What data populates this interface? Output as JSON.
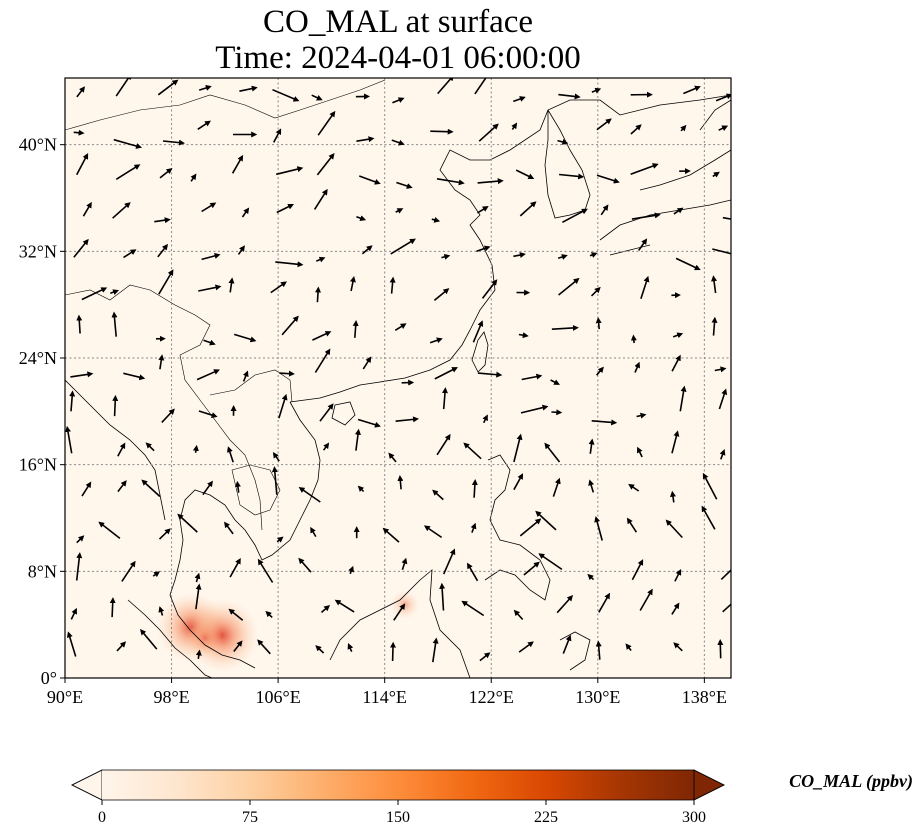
{
  "title": {
    "line1": "CO_MAL at surface",
    "line2": "Time: 2024-04-01 06:00:00"
  },
  "map": {
    "lon_range": [
      90,
      140
    ],
    "lat_range": [
      0,
      45
    ],
    "gridlines": true,
    "x_ticks": [
      {
        "value": 90,
        "label": "90°E"
      },
      {
        "value": 98,
        "label": "98°E"
      },
      {
        "value": 106,
        "label": "106°E"
      },
      {
        "value": 114,
        "label": "114°E"
      },
      {
        "value": 122,
        "label": "122°E"
      },
      {
        "value": 130,
        "label": "130°E"
      },
      {
        "value": 138,
        "label": "138°E"
      }
    ],
    "y_ticks": [
      {
        "value": 0,
        "label": "0°"
      },
      {
        "value": 8,
        "label": "8°N"
      },
      {
        "value": 16,
        "label": "16°N"
      },
      {
        "value": 24,
        "label": "24°N"
      },
      {
        "value": 32,
        "label": "32°N"
      },
      {
        "value": 40,
        "label": "40°N"
      }
    ],
    "background_color": "#fff6ec",
    "hotspots": [
      {
        "lon": 99.5,
        "lat": 3.8,
        "value": 160
      },
      {
        "lon": 101.8,
        "lat": 3.2,
        "value": 170
      },
      {
        "lon": 100.5,
        "lat": 3.0,
        "value": 60
      },
      {
        "lon": 115.5,
        "lat": 5.5,
        "value": 40
      }
    ]
  },
  "colorbar": {
    "min": 0,
    "max": 300,
    "extend": "both",
    "ticks": [
      {
        "value": 0,
        "label": "0"
      },
      {
        "value": 75,
        "label": "75"
      },
      {
        "value": 150,
        "label": "150"
      },
      {
        "value": 225,
        "label": "225"
      },
      {
        "value": 300,
        "label": "300"
      }
    ],
    "label": "CO_MAL (ppbv)",
    "colors": [
      "#fff5eb",
      "#fee6ce",
      "#fdd0a2",
      "#fdae6b",
      "#fd8d3c",
      "#f16913",
      "#d94801",
      "#a63603",
      "#7f2704"
    ]
  }
}
